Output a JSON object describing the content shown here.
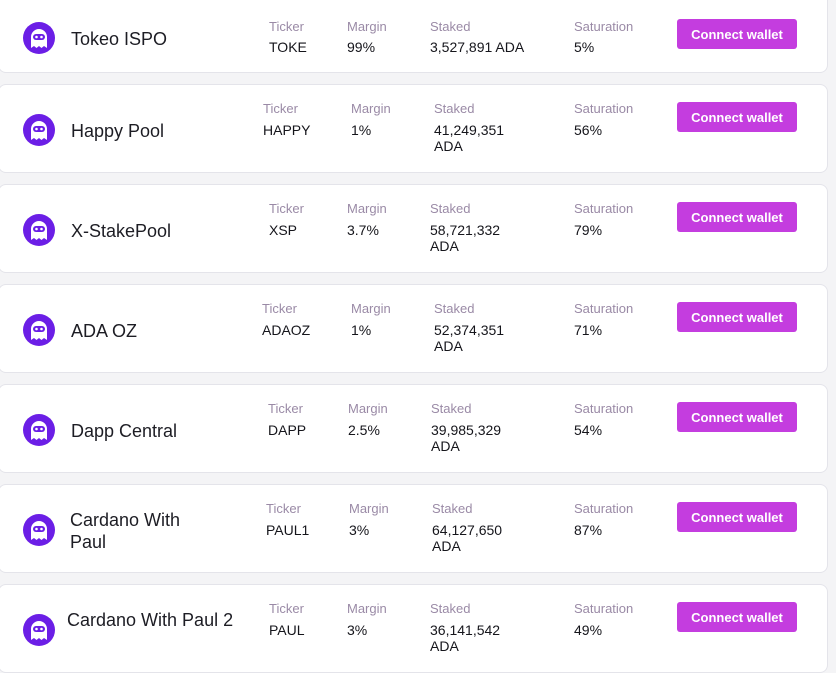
{
  "labels": {
    "ticker": "Ticker",
    "margin": "Margin",
    "staked": "Staked",
    "saturation": "Saturation",
    "connect": "Connect wallet"
  },
  "pools": [
    {
      "name": "Tokeo ISPO",
      "ticker": "TOKE",
      "margin": "99%",
      "staked": "3,527,891 ADA",
      "saturation": "5%"
    },
    {
      "name": "Happy Pool",
      "ticker": "HAPPY",
      "margin": "1%",
      "staked": "41,249,351 ADA",
      "saturation": "56%"
    },
    {
      "name": "X-StakePool",
      "ticker": "XSP",
      "margin": "3.7%",
      "staked": "58,721,332 ADA",
      "saturation": "79%"
    },
    {
      "name": "ADA OZ",
      "ticker": "ADAOZ",
      "margin": "1%",
      "staked": "52,374,351 ADA",
      "saturation": "71%"
    },
    {
      "name": "Dapp Central",
      "ticker": "DAPP",
      "margin": "2.5%",
      "staked": "39,985,329 ADA",
      "saturation": "54%"
    },
    {
      "name": "Cardano With Paul",
      "ticker": "PAUL1",
      "margin": "3%",
      "staked": "64,127,650 ADA",
      "saturation": "87%"
    },
    {
      "name": "Cardano With Paul 2",
      "ticker": "PAUL",
      "margin": "3%",
      "staked": "36,141,542 ADA",
      "saturation": "49%"
    }
  ],
  "colors": {
    "accent": "#c43ddf",
    "logo": "#6b1ee6"
  },
  "icons": {
    "pool_logo": "tokeo-ghost-logo-icon"
  }
}
